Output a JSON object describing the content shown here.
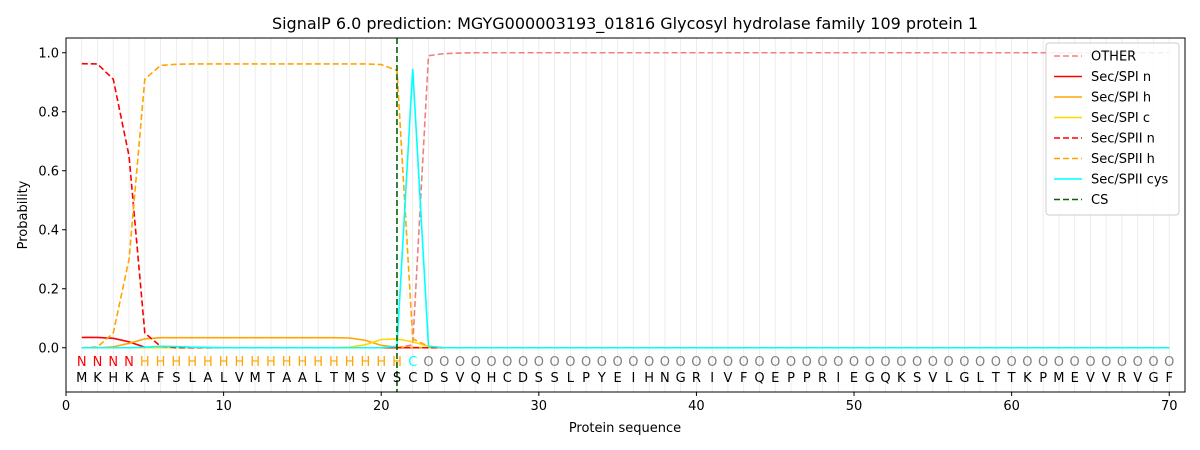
{
  "chart_data": {
    "type": "line",
    "title": "SignalP 6.0 prediction: MGYG000003193_01816 Glycosyl hydrolase family 109 protein 1",
    "xlabel": "Protein sequence",
    "ylabel": "Probability",
    "xlim": [
      0,
      71
    ],
    "ylim": [
      -0.15,
      1.05
    ],
    "xticks": [
      "0",
      "10",
      "20",
      "30",
      "40",
      "50",
      "60",
      "70"
    ],
    "yticks": [
      "0.0",
      "0.2",
      "0.4",
      "0.6",
      "0.8",
      "1.0"
    ],
    "legend_position": "top-right",
    "sequence": [
      "M",
      "K",
      "H",
      "K",
      "A",
      "F",
      "S",
      "L",
      "A",
      "L",
      "V",
      "M",
      "T",
      "A",
      "A",
      "L",
      "T",
      "M",
      "S",
      "V",
      "S",
      "C",
      "D",
      "S",
      "V",
      "Q",
      "H",
      "C",
      "D",
      "S",
      "S",
      "L",
      "P",
      "Y",
      "E",
      "I",
      "H",
      "N",
      "G",
      "R",
      "I",
      "V",
      "F",
      "Q",
      "E",
      "P",
      "P",
      "R",
      "I",
      "E",
      "G",
      "Q",
      "K",
      "S",
      "V",
      "L",
      "G",
      "L",
      "T",
      "T",
      "K",
      "P",
      "M",
      "E",
      "V",
      "V",
      "R",
      "V",
      "G",
      "F"
    ],
    "labels": [
      "N",
      "N",
      "N",
      "N",
      "H",
      "H",
      "H",
      "H",
      "H",
      "H",
      "H",
      "H",
      "H",
      "H",
      "H",
      "H",
      "H",
      "H",
      "H",
      "H",
      "H",
      "C",
      "O",
      "O",
      "O",
      "O",
      "O",
      "O",
      "O",
      "O",
      "O",
      "O",
      "O",
      "O",
      "O",
      "O",
      "O",
      "O",
      "O",
      "O",
      "O",
      "O",
      "O",
      "O",
      "O",
      "O",
      "O",
      "O",
      "O",
      "O",
      "O",
      "O",
      "O",
      "O",
      "O",
      "O",
      "O",
      "O",
      "O",
      "O",
      "O",
      "O",
      "O",
      "O",
      "O",
      "O",
      "O",
      "O",
      "O",
      "O"
    ],
    "label_colors": {
      "N": "#ff0000",
      "H": "#ffa500",
      "C": "#00ffff",
      "O": "#808080"
    },
    "cs_position": 21,
    "series": [
      {
        "name": "OTHER",
        "color": "#f08080",
        "dash": "dashed",
        "x": [
          1,
          2,
          3,
          4,
          5,
          6,
          7,
          8,
          9,
          10,
          11,
          12,
          13,
          14,
          15,
          16,
          17,
          18,
          19,
          20,
          21,
          22,
          23,
          24,
          25,
          26,
          70
        ],
        "y": [
          0,
          0,
          0,
          0,
          0,
          0,
          0,
          0,
          0,
          0,
          0,
          0,
          0,
          0,
          0,
          0,
          0,
          0,
          0,
          0,
          0,
          0.01,
          0.99,
          0.997,
          0.999,
          1.0,
          1.0
        ]
      },
      {
        "name": "Sec/SPI n",
        "color": "#ff0000",
        "dash": "solid",
        "x": [
          1,
          2,
          3,
          4,
          5,
          6,
          7,
          70
        ],
        "y": [
          0.035,
          0.035,
          0.032,
          0.02,
          0.002,
          0,
          0,
          0
        ]
      },
      {
        "name": "Sec/SPI h",
        "color": "#ffa500",
        "dash": "solid",
        "x": [
          1,
          2,
          3,
          4,
          5,
          6,
          7,
          8,
          9,
          10,
          11,
          12,
          13,
          14,
          15,
          16,
          17,
          18,
          19,
          20,
          21,
          22,
          23,
          24,
          70
        ],
        "y": [
          0,
          0,
          0.003,
          0.015,
          0.03,
          0.034,
          0.034,
          0.034,
          0.034,
          0.034,
          0.034,
          0.034,
          0.034,
          0.034,
          0.034,
          0.034,
          0.034,
          0.033,
          0.025,
          0.008,
          0.002,
          0.001,
          0,
          0,
          0
        ]
      },
      {
        "name": "Sec/SPI c",
        "color": "#ffd700",
        "dash": "solid",
        "x": [
          1,
          2,
          3,
          4,
          5,
          6,
          7,
          8,
          9,
          10,
          11,
          12,
          13,
          14,
          15,
          16,
          17,
          18,
          19,
          20,
          21,
          22,
          23,
          24,
          70
        ],
        "y": [
          0,
          0,
          0,
          0,
          0,
          0,
          0,
          0,
          0,
          0,
          0,
          0,
          0,
          0,
          0,
          0,
          0,
          0.002,
          0.01,
          0.028,
          0.03,
          0.02,
          0.005,
          0,
          0
        ]
      },
      {
        "name": "Sec/SPII n",
        "color": "#ff0000",
        "dash": "dashed",
        "x": [
          1,
          2,
          3,
          4,
          5,
          6,
          7,
          70
        ],
        "y": [
          0.963,
          0.962,
          0.91,
          0.65,
          0.05,
          0.005,
          0,
          0
        ]
      },
      {
        "name": "Sec/SPII h",
        "color": "#ffa500",
        "dash": "dashed",
        "x": [
          1,
          2,
          3,
          4,
          5,
          6,
          7,
          8,
          9,
          10,
          11,
          12,
          13,
          14,
          15,
          16,
          17,
          18,
          19,
          20,
          21,
          22,
          23,
          24,
          70
        ],
        "y": [
          0,
          0.003,
          0.05,
          0.3,
          0.91,
          0.957,
          0.961,
          0.962,
          0.962,
          0.962,
          0.962,
          0.962,
          0.962,
          0.962,
          0.962,
          0.962,
          0.962,
          0.962,
          0.962,
          0.96,
          0.94,
          0.03,
          0.005,
          0,
          0
        ]
      },
      {
        "name": "Sec/SPII cys",
        "color": "#00ffff",
        "dash": "solid",
        "x": [
          1,
          2,
          3,
          4,
          5,
          6,
          7,
          8,
          9,
          10,
          11,
          12,
          13,
          14,
          15,
          16,
          17,
          18,
          19,
          20,
          21,
          22,
          23,
          24,
          70
        ],
        "y": [
          0,
          0,
          0,
          0,
          0.002,
          0.005,
          0.004,
          0.002,
          0.001,
          0,
          0,
          0,
          0,
          0,
          0,
          0,
          0,
          0,
          0,
          0,
          0.005,
          0.945,
          0.005,
          0,
          0
        ]
      }
    ],
    "cs_legend": {
      "name": "CS",
      "color": "#006400",
      "dash": "dashed"
    }
  }
}
